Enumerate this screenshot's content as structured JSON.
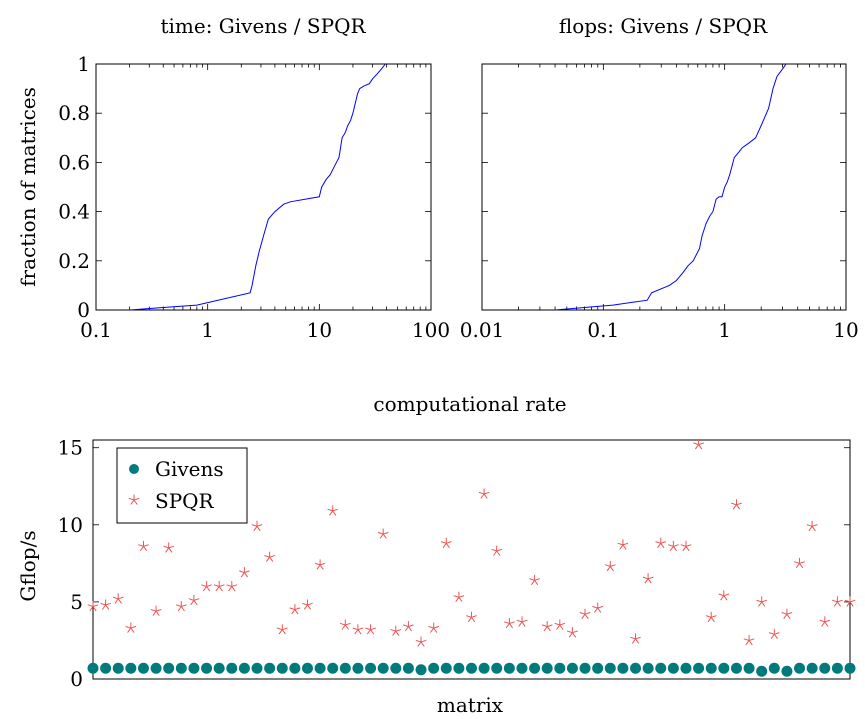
{
  "chart_data": [
    {
      "type": "line",
      "title": "time: Givens / SPQR",
      "xlabel": "",
      "ylabel": "fraction of matrices",
      "xscale": "log",
      "xlim": [
        0.1,
        100
      ],
      "ylim": [
        0,
        1
      ],
      "xticks": [
        "0.1",
        "1",
        "10",
        "100"
      ],
      "yticks": [
        "0",
        "0.2",
        "0.4",
        "0.6",
        "0.8",
        "1"
      ],
      "color": "#0000ff",
      "grid": false,
      "x": [
        0.2,
        0.4,
        0.8,
        1.0,
        2.4,
        2.5,
        2.7,
        2.9,
        3.2,
        3.5,
        4.0,
        4.8,
        5.5,
        10.0,
        10.5,
        11.5,
        12.5,
        13.5,
        15.0,
        16.0,
        17.0,
        18.0,
        19.0,
        20.0,
        22.0,
        23.0,
        25.0,
        28.0,
        30.0,
        33.0,
        36.0,
        39.0
      ],
      "y": [
        0.0,
        0.01,
        0.02,
        0.03,
        0.07,
        0.1,
        0.18,
        0.24,
        0.31,
        0.37,
        0.4,
        0.43,
        0.44,
        0.46,
        0.5,
        0.53,
        0.55,
        0.58,
        0.62,
        0.7,
        0.72,
        0.75,
        0.77,
        0.8,
        0.88,
        0.9,
        0.91,
        0.92,
        0.94,
        0.96,
        0.98,
        1.0
      ]
    },
    {
      "type": "line",
      "title": "flops: Givens / SPQR",
      "xlabel": "",
      "ylabel": "",
      "xscale": "log",
      "xlim": [
        0.01,
        10
      ],
      "ylim": [
        0,
        1
      ],
      "xticks": [
        "0.01",
        "0.1",
        "1",
        "10"
      ],
      "color": "#0000ff",
      "grid": false,
      "x": [
        0.04,
        0.07,
        0.12,
        0.23,
        0.25,
        0.35,
        0.4,
        0.45,
        0.5,
        0.55,
        0.62,
        0.65,
        0.7,
        0.75,
        0.8,
        0.85,
        0.9,
        0.95,
        1.0,
        1.05,
        1.1,
        1.2,
        1.3,
        1.4,
        1.6,
        1.8,
        2.0,
        2.3,
        2.5,
        2.7,
        3.0,
        3.2
      ],
      "y": [
        0.0,
        0.01,
        0.02,
        0.04,
        0.07,
        0.1,
        0.12,
        0.15,
        0.18,
        0.2,
        0.25,
        0.3,
        0.35,
        0.38,
        0.4,
        0.45,
        0.46,
        0.46,
        0.5,
        0.52,
        0.55,
        0.62,
        0.64,
        0.66,
        0.68,
        0.7,
        0.75,
        0.82,
        0.9,
        0.95,
        0.98,
        1.0
      ]
    },
    {
      "type": "scatter",
      "title": "computational rate",
      "xlabel": "matrix",
      "ylabel": "Gflop/s",
      "ylim": [
        0,
        15.5
      ],
      "yticks": [
        "0",
        "5",
        "10",
        "15"
      ],
      "legend": "top-left",
      "series": [
        {
          "name": "Givens",
          "marker": "circle",
          "color": "#007a7a",
          "values": [
            0.7,
            0.7,
            0.7,
            0.7,
            0.7,
            0.7,
            0.7,
            0.7,
            0.7,
            0.7,
            0.7,
            0.7,
            0.7,
            0.7,
            0.7,
            0.7,
            0.7,
            0.7,
            0.7,
            0.7,
            0.7,
            0.7,
            0.7,
            0.7,
            0.7,
            0.7,
            0.6,
            0.7,
            0.7,
            0.7,
            0.7,
            0.7,
            0.7,
            0.7,
            0.7,
            0.7,
            0.7,
            0.7,
            0.7,
            0.7,
            0.7,
            0.7,
            0.7,
            0.7,
            0.7,
            0.7,
            0.7,
            0.7,
            0.7,
            0.7,
            0.7,
            0.7,
            0.7,
            0.5,
            0.7,
            0.5,
            0.7,
            0.7,
            0.7,
            0.7,
            0.7
          ]
        },
        {
          "name": "SPQR",
          "marker": "star",
          "color": "#ee5555",
          "values": [
            4.7,
            4.8,
            5.2,
            3.3,
            8.6,
            4.4,
            8.5,
            4.7,
            5.1,
            6.0,
            6.0,
            6.0,
            6.9,
            9.9,
            7.9,
            3.2,
            4.5,
            4.8,
            7.4,
            10.9,
            3.5,
            3.2,
            3.2,
            9.4,
            3.1,
            3.4,
            2.4,
            3.3,
            8.8,
            5.3,
            4.0,
            12.0,
            8.3,
            3.6,
            3.7,
            6.4,
            3.4,
            3.5,
            3.0,
            4.2,
            4.6,
            7.3,
            8.7,
            2.6,
            6.5,
            8.8,
            8.6,
            8.6,
            15.2,
            4.0,
            5.4,
            11.3,
            2.5,
            5.0,
            2.9,
            4.2,
            7.5,
            9.9,
            3.7,
            5.0,
            5.0
          ]
        }
      ]
    }
  ]
}
